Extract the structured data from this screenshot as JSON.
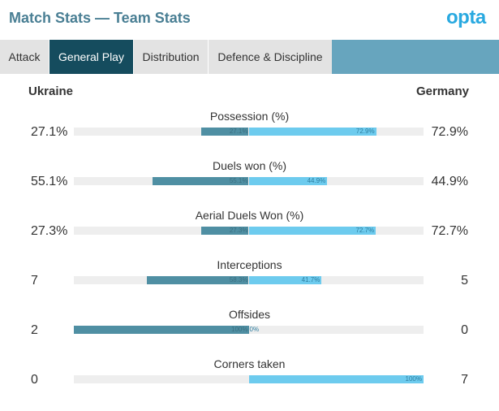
{
  "header": {
    "title": "Match Stats — Team Stats",
    "logo_text": "opta"
  },
  "tabs": [
    {
      "label": "Attack",
      "active": false
    },
    {
      "label": "General Play",
      "active": true
    },
    {
      "label": "Distribution",
      "active": false
    },
    {
      "label": "Defence & Discipline",
      "active": false
    }
  ],
  "teams": {
    "home": "Ukraine",
    "away": "Germany"
  },
  "colors": {
    "home_bar": "#4f8fa3",
    "away_bar": "#6dcbee",
    "active_tab": "#154c5e",
    "tab_strip": "#67a5be",
    "title": "#4a7f94",
    "logo": "#29a9e0"
  },
  "stats": [
    {
      "label": "Possession (%)",
      "home_value": "27.1%",
      "away_value": "72.9%",
      "home_share": 27.1,
      "away_share": 72.9,
      "home_pct": "27.1%",
      "away_pct": "72.9%"
    },
    {
      "label": "Duels won (%)",
      "home_value": "55.1%",
      "away_value": "44.9%",
      "home_share": 55.1,
      "away_share": 44.9,
      "home_pct": "55.1%",
      "away_pct": "44.9%"
    },
    {
      "label": "Aerial Duels Won (%)",
      "home_value": "27.3%",
      "away_value": "72.7%",
      "home_share": 27.3,
      "away_share": 72.7,
      "home_pct": "27.3%",
      "away_pct": "72.7%"
    },
    {
      "label": "Interceptions",
      "home_value": "7",
      "away_value": "5",
      "home_share": 58.3,
      "away_share": 41.7,
      "home_pct": "58.3%",
      "away_pct": "41.7%"
    },
    {
      "label": "Offsides",
      "home_value": "2",
      "away_value": "0",
      "home_share": 100,
      "away_share": 0,
      "home_pct": "100%",
      "away_pct": "0%"
    },
    {
      "label": "Corners taken",
      "home_value": "0",
      "away_value": "7",
      "home_share": 0,
      "away_share": 100,
      "home_pct": "",
      "away_pct": "100%"
    }
  ]
}
